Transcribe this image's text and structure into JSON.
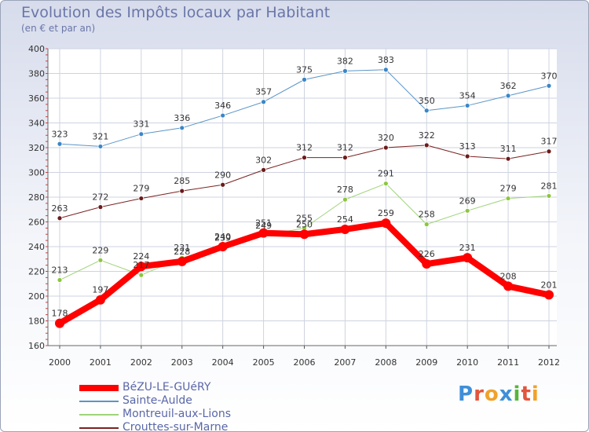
{
  "title": "Evolution des Impôts locaux par Habitant",
  "subtitle": "(en € et par an)",
  "logo_text": "Proxiti",
  "chart_data": {
    "type": "line",
    "title": "Evolution des Impôts locaux par Habitant",
    "subtitle": "(en € et par an)",
    "xlabel": "",
    "ylabel": "",
    "ylim": [
      160,
      400
    ],
    "yticks": [
      160,
      180,
      200,
      220,
      240,
      260,
      280,
      300,
      320,
      340,
      360,
      380,
      400
    ],
    "categories": [
      "2000",
      "2001",
      "2002",
      "2003",
      "2004",
      "2005",
      "2006",
      "2007",
      "2008",
      "2009",
      "2010",
      "2011",
      "2012"
    ],
    "legend_position": "bottom-left",
    "series": [
      {
        "name": "Sainte-Aulde",
        "color": "#5b95c7",
        "marker": "#3a86c8",
        "width": 1,
        "values": [
          323,
          321,
          331,
          336,
          346,
          357,
          375,
          382,
          383,
          350,
          354,
          362,
          370
        ]
      },
      {
        "name": "Crouttes-sur-Marne",
        "color": "#7a2222",
        "marker": "#6b1b1b",
        "width": 1,
        "values": [
          263,
          272,
          279,
          285,
          290,
          302,
          312,
          312,
          320,
          322,
          313,
          311,
          317
        ]
      },
      {
        "name": "Montreuil-aux-Lions",
        "color": "#9fd37a",
        "marker": "#8dc63f",
        "width": 1,
        "values": [
          213,
          229,
          217,
          231,
          239,
          249,
          255,
          278,
          291,
          258,
          269,
          279,
          281
        ]
      },
      {
        "name": "BéZU-LE-GUéRY",
        "color": "#ff0000",
        "marker": "#ff0000",
        "width": 8,
        "values": [
          178,
          197,
          224,
          228,
          240,
          251,
          250,
          254,
          259,
          226,
          231,
          208,
          201
        ]
      }
    ],
    "legend_order": [
      "BéZU-LE-GUéRY",
      "Sainte-Aulde",
      "Montreuil-aux-Lions",
      "Crouttes-sur-Marne"
    ]
  }
}
